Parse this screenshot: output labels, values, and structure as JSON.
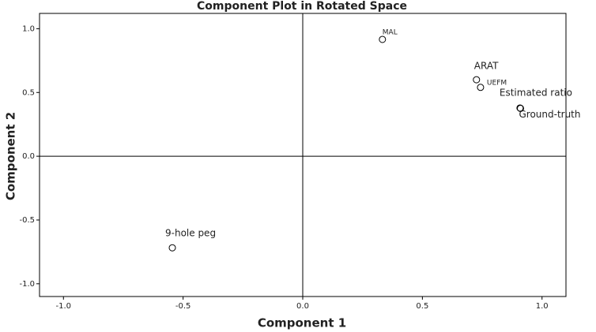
{
  "chart_data": {
    "type": "scatter",
    "title": "Component Plot in Rotated Space",
    "x_label": "Component 1",
    "y_label": "Component 2",
    "labels": [
      "MAL",
      "ARAT",
      "UEFM",
      "Estimated ratio",
      "Ground-truth",
      "9-hole peg"
    ],
    "x": [
      0.333,
      0.726,
      0.743,
      0.908,
      0.91,
      -0.545
    ],
    "values": [
      0.916,
      0.6,
      0.54,
      0.378,
      0.375,
      -0.718
    ],
    "color": "#000000",
    "xlim": [
      -1.1,
      1.1
    ],
    "ylim": [
      -1.1,
      1.12
    ],
    "xticks": [
      {
        "value": -1,
        "label": "-1.0"
      },
      {
        "value": -0.5,
        "label": "-0.5"
      },
      {
        "value": 0,
        "label": "0.0"
      },
      {
        "value": 0.5,
        "label": "0.5"
      },
      {
        "value": 1,
        "label": "1.0"
      }
    ],
    "yticks": [
      {
        "value": -1,
        "label": "-1.0"
      },
      {
        "value": -0.5,
        "label": "-0.5"
      },
      {
        "value": 0,
        "label": "0.0"
      },
      {
        "value": 0.5,
        "label": "0.5"
      },
      {
        "value": 1,
        "label": "1.0"
      }
    ]
  }
}
